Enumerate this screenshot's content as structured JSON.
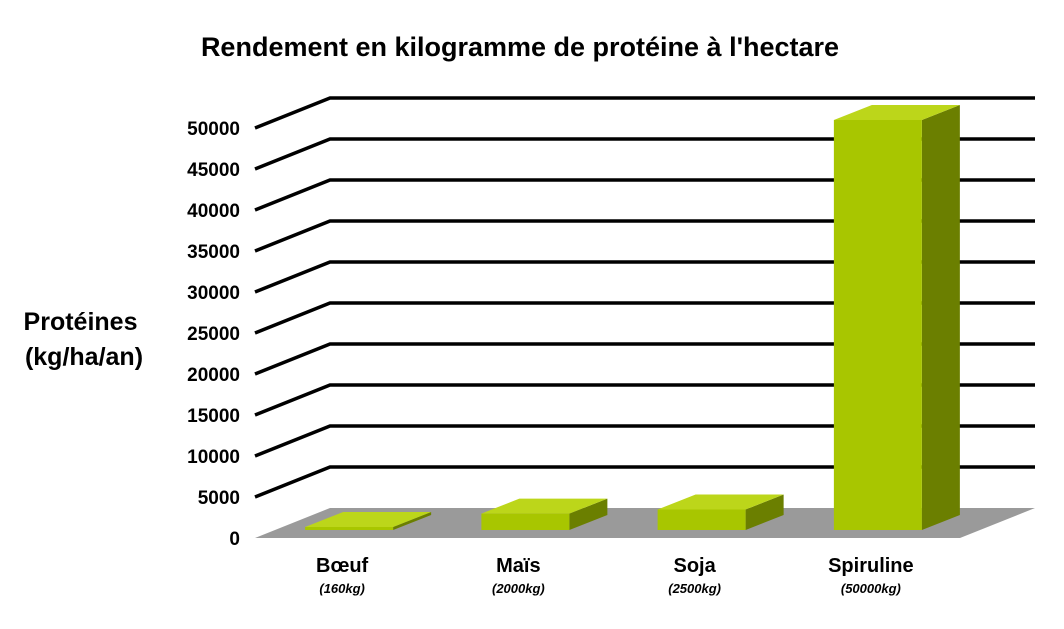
{
  "chart_data": {
    "type": "bar",
    "title": "Rendement en kilogramme de protéine à l'hectare",
    "ylabel_lines": [
      "Protéines",
      "(kg/ha/an)"
    ],
    "categories": [
      "Bœuf",
      "Maïs",
      "Soja",
      "Spiruline"
    ],
    "category_sublabels": [
      "(160kg)",
      "(2000kg)",
      "(2500kg)",
      "(50000kg)"
    ],
    "values": [
      160,
      2000,
      2500,
      50000
    ],
    "ylim": [
      0,
      50000
    ],
    "yticks": [
      0,
      5000,
      10000,
      15000,
      20000,
      25000,
      30000,
      35000,
      40000,
      45000,
      50000
    ],
    "grid": true,
    "three_d": true,
    "colors": {
      "bar_front": "#a8c600",
      "bar_top": "#bcd61a",
      "bar_side": "#6b7f00",
      "floor": "#9a9a9a",
      "grid": "#000000"
    }
  }
}
